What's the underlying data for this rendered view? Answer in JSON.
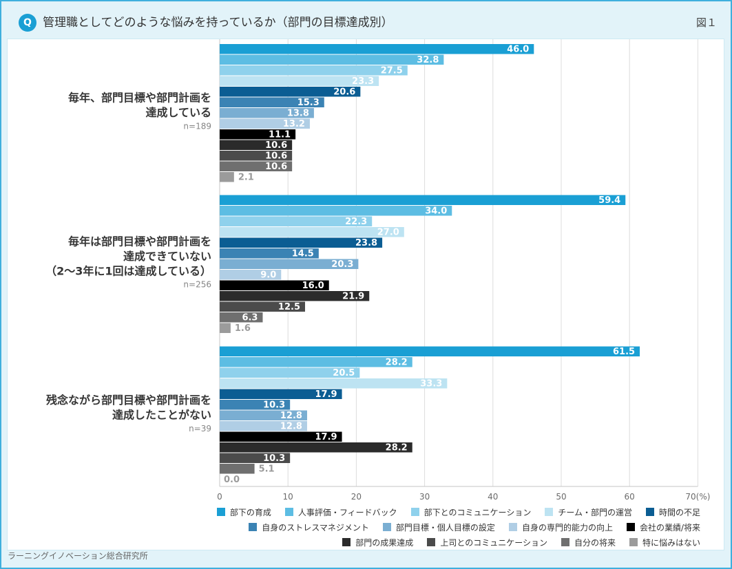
{
  "header": {
    "q_icon_label": "Q",
    "figure_label": "図１"
  },
  "source": "ラーニングイノベーション総合研究所",
  "colors": {
    "page_background": "#e2f3f9",
    "frame_border": "#3eafdd",
    "accent": "#1a9fd4",
    "panel_background": "#ffffff",
    "gridline": "#dcdcdc",
    "axis_line": "#c4c4c4",
    "value_label": "#ffffff",
    "value_label_outside": "#9a9a9a"
  },
  "chart_data": {
    "type": "bar",
    "orientation": "horizontal",
    "title": "管理職としてどのような悩みを持っているか（部門の目標達成別）",
    "xlim": [
      0,
      70
    ],
    "x_ticks": [
      0,
      10,
      20,
      30,
      40,
      50,
      60,
      70
    ],
    "x_tick_labels": [
      "0",
      "10",
      "20",
      "30",
      "40",
      "50",
      "60",
      "70(%)"
    ],
    "grid": true,
    "legend_position": "bottom-right",
    "groups": [
      {
        "label_lines": [
          "毎年、部門目標や部門計画を",
          "達成している"
        ],
        "n": "n=189"
      },
      {
        "label_lines": [
          "毎年は部門目標や部門計画を",
          "達成できていない",
          "（2～3年に1回は達成している）"
        ],
        "n": "n=256"
      },
      {
        "label_lines": [
          "残念ながら部門目標や部門計画を",
          "達成したことがない"
        ],
        "n": "n=39"
      }
    ],
    "series": [
      {
        "name": "部下の育成",
        "color": "#1a9fd4",
        "values": [
          46.0,
          59.4,
          61.5
        ]
      },
      {
        "name": "人事評価・フィードバック",
        "color": "#5dbde3",
        "values": [
          32.8,
          34.0,
          28.2
        ]
      },
      {
        "name": "部下とのコミュニケーション",
        "color": "#8fd1ec",
        "values": [
          27.5,
          22.3,
          20.5
        ]
      },
      {
        "name": "チーム・部門の運営",
        "color": "#bde3f2",
        "values": [
          23.3,
          27.0,
          33.3
        ]
      },
      {
        "name": "時間の不足",
        "color": "#0b5d93",
        "values": [
          20.6,
          23.8,
          17.9
        ]
      },
      {
        "name": "自身のストレスマネジメント",
        "color": "#3b83b4",
        "values": [
          15.3,
          14.5,
          10.3
        ]
      },
      {
        "name": "部門目標・個人目標の設定",
        "color": "#7aaed2",
        "values": [
          13.8,
          20.3,
          12.8
        ]
      },
      {
        "name": "自身の専門的能力の向上",
        "color": "#b0cee5",
        "values": [
          13.2,
          9.0,
          12.8
        ]
      },
      {
        "name": "会社の業績/将来",
        "color": "#000000",
        "values": [
          11.1,
          16.0,
          17.9
        ]
      },
      {
        "name": "部門の成果達成",
        "color": "#2b2b2b",
        "values": [
          10.6,
          21.9,
          28.2
        ]
      },
      {
        "name": "上司とのコミュニケーション",
        "color": "#4b4b4b",
        "values": [
          10.6,
          12.5,
          10.3
        ]
      },
      {
        "name": "自分の将来",
        "color": "#6f6f6f",
        "values": [
          10.6,
          6.3,
          5.1
        ]
      },
      {
        "name": "特に悩みはない",
        "color": "#9b9b9b",
        "values": [
          2.1,
          1.6,
          0.0
        ]
      }
    ]
  }
}
